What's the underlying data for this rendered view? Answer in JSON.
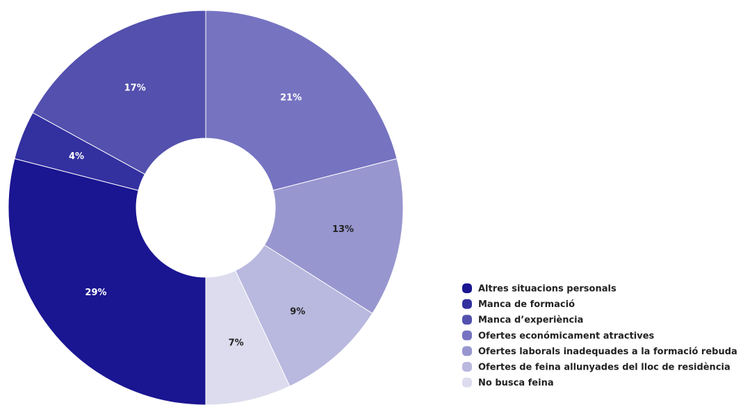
{
  "chart_data": {
    "type": "donut",
    "categories": [
      "Altres situacions personals",
      "Manca de formació",
      "Manca d’experiència",
      "Ofertes económicament atractives",
      "Ofertes laborals inadequades a la formació rebuda",
      "Ofertes de feina allunyades del lloc de residència",
      "No busca feina"
    ],
    "values": [
      29,
      4,
      17,
      21,
      13,
      9,
      7
    ],
    "value_labels": [
      "29%",
      "4%",
      "17%",
      "21%",
      "13%",
      "9%",
      "7%"
    ],
    "colors": [
      "#1a1591",
      "#3330a0",
      "#5350ae",
      "#7673c1",
      "#9896cf",
      "#b9b8df",
      "#dcdcee"
    ],
    "legend": "bottom-right"
  }
}
